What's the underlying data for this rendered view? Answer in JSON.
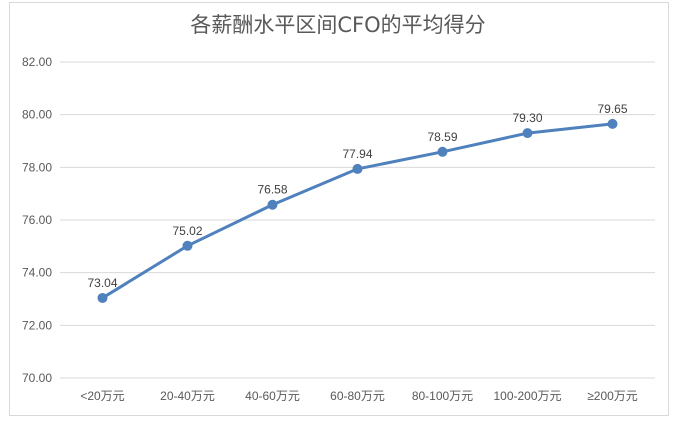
{
  "chart_data": {
    "type": "line",
    "title": "各薪酬水平区间CFO的平均得分",
    "categories": [
      "<20万元",
      "20-40万元",
      "40-60万元",
      "60-80万元",
      "80-100万元",
      "100-200万元",
      "≥200万元"
    ],
    "values": [
      73.04,
      75.02,
      76.58,
      77.94,
      78.59,
      79.3,
      79.65
    ],
    "value_labels": [
      "73.04",
      "75.02",
      "76.58",
      "77.94",
      "78.59",
      "79.30",
      "79.65"
    ],
    "ylim": [
      70,
      82
    ],
    "yticks": [
      "70.00",
      "72.00",
      "74.00",
      "76.00",
      "78.00",
      "80.00",
      "82.00"
    ],
    "xlabel": "",
    "ylabel": "",
    "grid": true,
    "legend": "none",
    "colors": {
      "line": "#4f81bd",
      "grid": "#d9d9d9",
      "text": "#595959"
    }
  }
}
